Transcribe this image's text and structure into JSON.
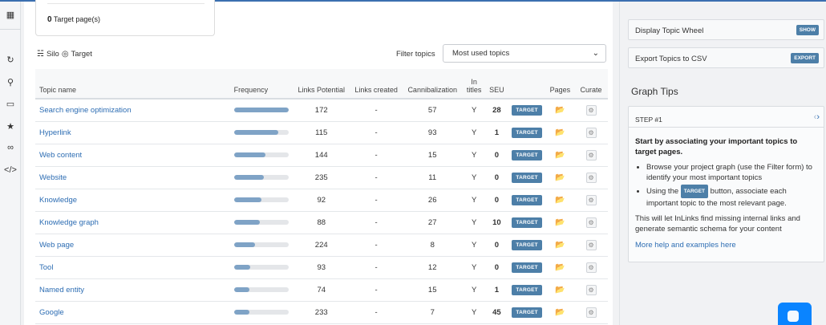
{
  "target_card": {
    "count": "0",
    "label": "Target page(s)"
  },
  "silo": {
    "silo_label": "Silo",
    "target_label": "Target"
  },
  "filter": {
    "label": "Filter topics",
    "selected": "Most used topics"
  },
  "table": {
    "headers": {
      "topic": "Topic name",
      "frequency": "Frequency",
      "links_potential": "Links Potential",
      "links_created": "Links created",
      "cannibalization": "Cannibalization",
      "in_titles_1": "In",
      "in_titles_2": "titles",
      "seu": "SEU",
      "pages": "Pages",
      "curate": "Curate"
    },
    "target_label": "TARGET",
    "rows": [
      {
        "name": "Search engine optimization",
        "frequency": 1.0,
        "links_potential": "172",
        "links_created": "-",
        "cannibalization": "57",
        "in_titles": "Y",
        "seu": "28"
      },
      {
        "name": "Hyperlink",
        "frequency": 0.82,
        "links_potential": "115",
        "links_created": "-",
        "cannibalization": "93",
        "in_titles": "Y",
        "seu": "1"
      },
      {
        "name": "Web content",
        "frequency": 0.58,
        "links_potential": "144",
        "links_created": "-",
        "cannibalization": "15",
        "in_titles": "Y",
        "seu": "0"
      },
      {
        "name": "Website",
        "frequency": 0.55,
        "links_potential": "235",
        "links_created": "-",
        "cannibalization": "11",
        "in_titles": "Y",
        "seu": "0"
      },
      {
        "name": "Knowledge",
        "frequency": 0.5,
        "links_potential": "92",
        "links_created": "-",
        "cannibalization": "26",
        "in_titles": "Y",
        "seu": "0"
      },
      {
        "name": "Knowledge graph",
        "frequency": 0.47,
        "links_potential": "88",
        "links_created": "-",
        "cannibalization": "27",
        "in_titles": "Y",
        "seu": "10"
      },
      {
        "name": "Web page",
        "frequency": 0.39,
        "links_potential": "224",
        "links_created": "-",
        "cannibalization": "8",
        "in_titles": "Y",
        "seu": "0"
      },
      {
        "name": "Tool",
        "frequency": 0.3,
        "links_potential": "93",
        "links_created": "-",
        "cannibalization": "12",
        "in_titles": "Y",
        "seu": "0"
      },
      {
        "name": "Named entity",
        "frequency": 0.29,
        "links_potential": "74",
        "links_created": "-",
        "cannibalization": "15",
        "in_titles": "Y",
        "seu": "1"
      },
      {
        "name": "Google",
        "frequency": 0.28,
        "links_potential": "233",
        "links_created": "-",
        "cannibalization": "7",
        "in_titles": "Y",
        "seu": "45"
      }
    ]
  },
  "right_panel": {
    "display_wheel": {
      "label": "Display Topic Wheel",
      "button": "SHOW"
    },
    "export": {
      "label": "Export Topics to CSV",
      "button": "EXPORT"
    },
    "graph_tips_title": "Graph Tips",
    "tip": {
      "step": "STEP #1",
      "heading": "Start by associating your important topics to target pages.",
      "bullet1": "Browse your project graph (use the Filter form) to identify your most important topics",
      "bullet2_pre": "Using the",
      "bullet2_btn": "TARGET",
      "bullet2_post": "button, associate each important topic to the most relevant page.",
      "paragraph": "This will let InLinks find missing internal links and generate semantic schema for your content",
      "more_link": "More help and examples here"
    }
  },
  "colors": {
    "accent": "#4d7fa8",
    "link": "#2d6db3",
    "bar": "#7fa3c6",
    "chat": "#0a84ff"
  }
}
